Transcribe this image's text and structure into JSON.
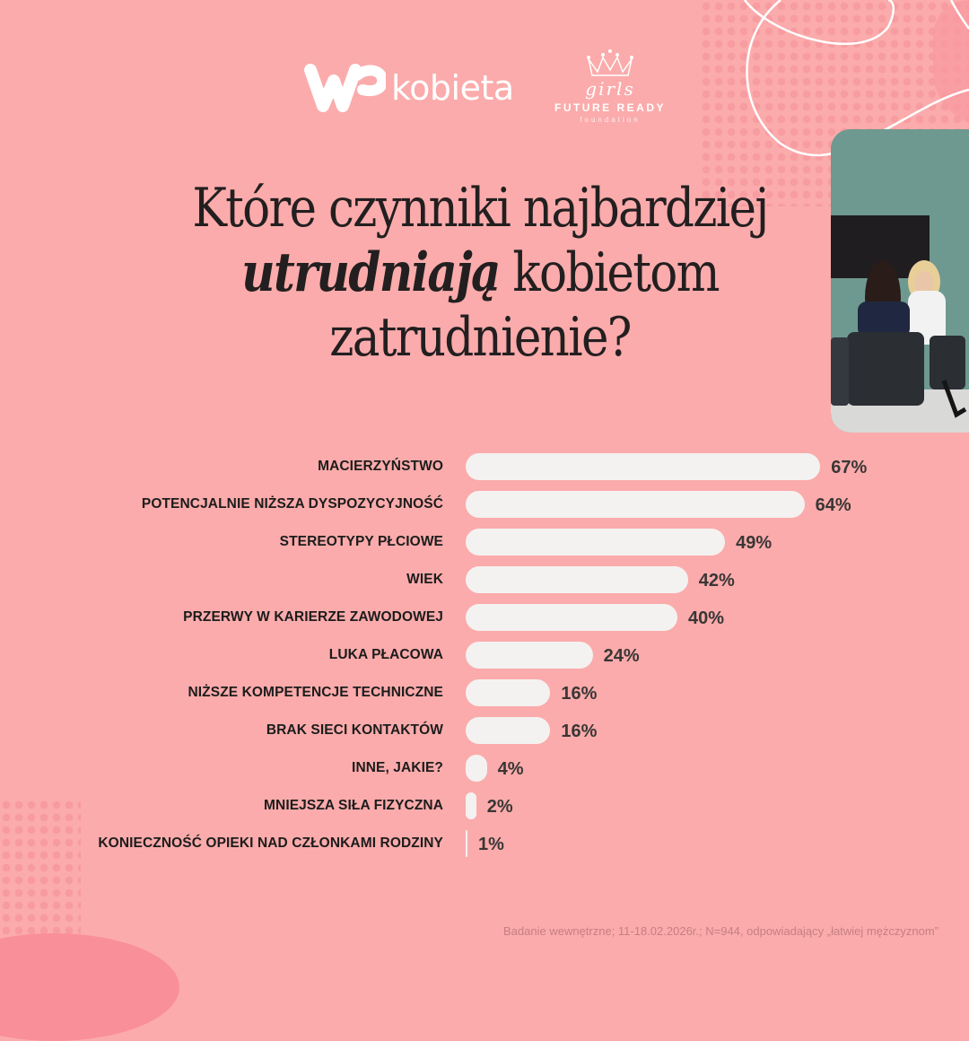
{
  "header": {
    "logo_wp_text": "kobieta",
    "logo_girls_script": "girls",
    "logo_girls_line1": "FUTURE READY",
    "logo_girls_line2": "foundation"
  },
  "title": {
    "line1": "Które czynniki najbardziej",
    "line2_emph": "utrudniają",
    "line2_rest": " kobietom",
    "line3": "zatrudnienie?"
  },
  "chart_data": {
    "type": "bar",
    "orientation": "horizontal",
    "title": "Które czynniki najbardziej utrudniają kobietom zatrudnienie?",
    "xlabel": "",
    "ylabel": "",
    "unit": "%",
    "categories": [
      "MACIERZYŃSTWO",
      "POTENCJALNIE NIŻSZA DYSPOZYCYJNOŚĆ",
      "STEREOTYPY PŁCIOWE",
      "WIEK",
      "PRZERWY W KARIERZE ZAWODOWEJ",
      "LUKA PŁACOWA",
      "NIŻSZE KOMPETENCJE TECHNICZNE",
      "BRAK SIECI KONTAKTÓW",
      "INNE, JAKIE?",
      "MNIEJSZA SIŁA FIZYCZNA",
      "KONIECZNOŚĆ OPIEKI NAD CZŁONKAMI RODZINY"
    ],
    "values": [
      67,
      64,
      49,
      42,
      40,
      24,
      16,
      16,
      4,
      2,
      1
    ],
    "value_labels": [
      "67%",
      "64%",
      "49%",
      "42%",
      "40%",
      "24%",
      "16%",
      "16%",
      "4%",
      "2%",
      "1%"
    ],
    "grid": false,
    "legend": null
  },
  "footer": {
    "note": "Badanie wewnętrzne; 11-18.02.2026r.; N=944, odpowiadający „łatwiej mężczyznom”"
  },
  "colors": {
    "background": "#fbabab",
    "bar": "#f4f2f1",
    "title": "#231f20",
    "value_text": "#3a3636"
  }
}
